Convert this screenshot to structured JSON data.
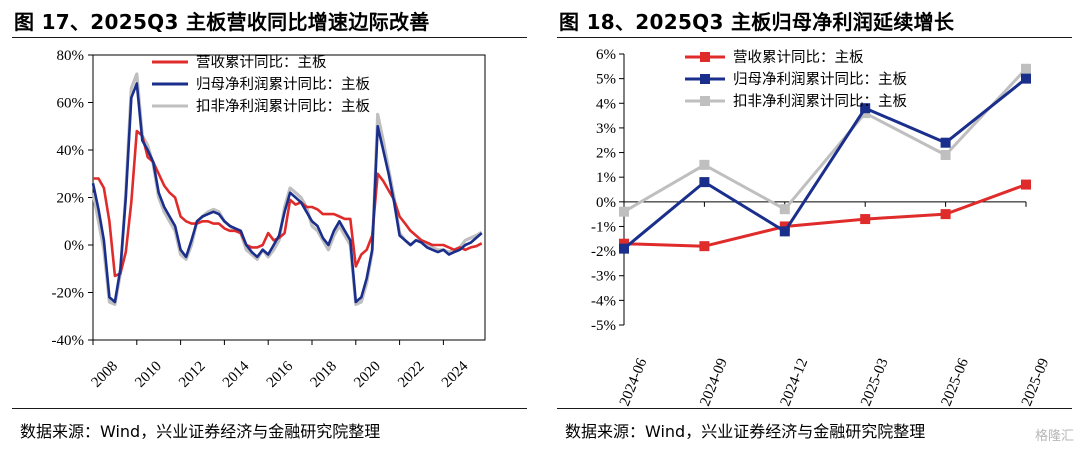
{
  "watermark": "格隆汇",
  "colors": {
    "revenue": "#e02b2b",
    "profit": "#1a2e8c",
    "deducted": "#bfbfbf"
  },
  "left": {
    "title": "图 17、2025Q3 主板营收同比增速边际改善",
    "source": "数据来源：Wind，兴业证券经济与金融研究院整理",
    "chart_data": {
      "type": "line",
      "title": "图 17、2025Q3 主板营收同比增速边际改善",
      "x_ticks": [
        "2008",
        "2010",
        "2012",
        "2014",
        "2016",
        "2018",
        "2020",
        "2022",
        "2024"
      ],
      "y_ticks": [
        "80%",
        "60%",
        "40%",
        "20%",
        "0%",
        "-20%",
        "-40%"
      ],
      "ylim": [
        -40,
        80
      ],
      "xlim": [
        2008.0,
        2025.9
      ],
      "grid": false,
      "legend_position": "top-right",
      "series": [
        {
          "name": "营收累计同比：主板",
          "color": "#e02b2b",
          "x": [
            2008.0,
            2008.25,
            2008.5,
            2008.75,
            2009.0,
            2009.25,
            2009.5,
            2009.75,
            2010.0,
            2010.25,
            2010.5,
            2010.75,
            2011.0,
            2011.25,
            2011.5,
            2011.75,
            2012.0,
            2012.25,
            2012.5,
            2012.75,
            2013.0,
            2013.25,
            2013.5,
            2013.75,
            2014.0,
            2014.25,
            2014.5,
            2014.75,
            2015.0,
            2015.25,
            2015.5,
            2015.75,
            2016.0,
            2016.25,
            2016.5,
            2016.75,
            2017.0,
            2017.25,
            2017.5,
            2017.75,
            2018.0,
            2018.25,
            2018.5,
            2018.75,
            2019.0,
            2019.25,
            2019.5,
            2019.75,
            2020.0,
            2020.25,
            2020.5,
            2020.75,
            2021.0,
            2021.25,
            2021.5,
            2021.75,
            2022.0,
            2022.25,
            2022.5,
            2022.75,
            2023.0,
            2023.25,
            2023.5,
            2023.75,
            2024.0,
            2024.25,
            2024.5,
            2024.75,
            2025.0,
            2025.25,
            2025.5,
            2025.75
          ],
          "y": [
            28,
            28,
            24,
            10,
            -13,
            -12,
            -3,
            18,
            48,
            46,
            37,
            35,
            30,
            25,
            22,
            20,
            12,
            10,
            9,
            9,
            10,
            10,
            9,
            9,
            7,
            6,
            6,
            5,
            0,
            -1,
            -1,
            0,
            5,
            2,
            3,
            5,
            19,
            17,
            18,
            16,
            16,
            15,
            13,
            13,
            13,
            12,
            11,
            11,
            -9,
            -4,
            -2,
            4,
            30,
            27,
            23,
            19,
            12,
            9,
            6,
            4,
            2,
            1,
            0,
            0,
            0,
            -1,
            -2,
            -1,
            -2,
            -1,
            -0.5,
            0.7
          ]
        },
        {
          "name": "归母净利润累计同比：主板",
          "color": "#1a2e8c",
          "x": [
            2008.0,
            2008.25,
            2008.5,
            2008.75,
            2009.0,
            2009.25,
            2009.5,
            2009.75,
            2010.0,
            2010.25,
            2010.5,
            2010.75,
            2011.0,
            2011.25,
            2011.5,
            2011.75,
            2012.0,
            2012.25,
            2012.5,
            2012.75,
            2013.0,
            2013.25,
            2013.5,
            2013.75,
            2014.0,
            2014.25,
            2014.5,
            2014.75,
            2015.0,
            2015.25,
            2015.5,
            2015.75,
            2016.0,
            2016.25,
            2016.5,
            2016.75,
            2017.0,
            2017.25,
            2017.5,
            2017.75,
            2018.0,
            2018.25,
            2018.5,
            2018.75,
            2019.0,
            2019.25,
            2019.5,
            2019.75,
            2020.0,
            2020.25,
            2020.5,
            2020.75,
            2021.0,
            2021.25,
            2021.5,
            2021.75,
            2022.0,
            2022.25,
            2022.5,
            2022.75,
            2023.0,
            2023.25,
            2023.5,
            2023.75,
            2024.0,
            2024.25,
            2024.5,
            2024.75,
            2025.0,
            2025.25,
            2025.5,
            2025.75
          ],
          "y": [
            26,
            15,
            2,
            -22,
            -24,
            -10,
            20,
            62,
            68,
            44,
            40,
            35,
            22,
            16,
            12,
            8,
            -2,
            -5,
            2,
            10,
            12,
            13,
            14,
            13,
            10,
            8,
            7,
            6,
            0,
            -3,
            -5,
            -2,
            -4,
            0,
            4,
            14,
            22,
            20,
            18,
            14,
            10,
            8,
            3,
            0,
            6,
            10,
            6,
            2,
            -24,
            -22,
            -14,
            -2,
            50,
            40,
            30,
            18,
            4,
            2,
            0,
            2,
            1,
            -1,
            -2,
            -3,
            -2,
            -4,
            -3,
            -2,
            0,
            1,
            3,
            5
          ]
        },
        {
          "name": "扣非净利润累计同比：主板",
          "color": "#bfbfbf",
          "x": [
            2008.0,
            2008.25,
            2008.5,
            2008.75,
            2009.0,
            2009.25,
            2009.5,
            2009.75,
            2010.0,
            2010.25,
            2010.5,
            2010.75,
            2011.0,
            2011.25,
            2011.5,
            2011.75,
            2012.0,
            2012.25,
            2012.5,
            2012.75,
            2013.0,
            2013.25,
            2013.5,
            2013.75,
            2014.0,
            2014.25,
            2014.5,
            2014.75,
            2015.0,
            2015.25,
            2015.5,
            2015.75,
            2016.0,
            2016.25,
            2016.5,
            2016.75,
            2017.0,
            2017.25,
            2017.5,
            2017.75,
            2018.0,
            2018.25,
            2018.5,
            2018.75,
            2019.0,
            2019.25,
            2019.5,
            2019.75,
            2020.0,
            2020.25,
            2020.5,
            2020.75,
            2021.0,
            2021.25,
            2021.5,
            2021.75,
            2022.0,
            2022.25,
            2022.5,
            2022.75,
            2023.0,
            2023.25,
            2023.5,
            2023.75,
            2024.0,
            2024.25,
            2024.5,
            2024.75,
            2025.0,
            2025.25,
            2025.5,
            2025.75
          ],
          "y": [
            22,
            10,
            -2,
            -24,
            -25,
            -12,
            22,
            66,
            72,
            46,
            42,
            34,
            20,
            14,
            10,
            6,
            -4,
            -6,
            0,
            10,
            12,
            14,
            15,
            14,
            10,
            8,
            6,
            5,
            -2,
            -4,
            -6,
            -2,
            -5,
            -2,
            2,
            16,
            24,
            22,
            20,
            16,
            8,
            6,
            2,
            -2,
            4,
            8,
            4,
            0,
            -25,
            -24,
            -16,
            -3,
            55,
            44,
            32,
            20,
            5,
            2,
            0,
            2,
            2,
            0,
            -1,
            -2,
            -2,
            -3,
            -2,
            -1,
            2,
            3,
            4,
            5.4
          ]
        }
      ]
    }
  },
  "right": {
    "title": "图 18、2025Q3 主板归母净利润延续增长",
    "source": "数据来源：Wind，兴业证券经济与金融研究院整理",
    "chart_data": {
      "type": "line",
      "title": "图 18、2025Q3 主板归母净利润延续增长",
      "categories": [
        "2024-06",
        "2024-09",
        "2024-12",
        "2025-03",
        "2025-06",
        "2025-09"
      ],
      "y_ticks": [
        "6%",
        "5%",
        "4%",
        "3%",
        "2%",
        "1%",
        "0%",
        "-1%",
        "-2%",
        "-3%",
        "-4%",
        "-5%"
      ],
      "ylim": [
        -5,
        6
      ],
      "grid": false,
      "legend_position": "top-left",
      "markers": "square",
      "series": [
        {
          "name": "营收累计同比：主板",
          "color": "#e02b2b",
          "values": [
            -1.7,
            -1.8,
            -1.0,
            -0.7,
            -0.5,
            0.7
          ]
        },
        {
          "name": "归母净利润累计同比：主板",
          "color": "#1a2e8c",
          "values": [
            -1.9,
            0.8,
            -1.2,
            3.8,
            2.4,
            5.0
          ]
        },
        {
          "name": "扣非净利润累计同比：主板",
          "color": "#bfbfbf",
          "values": [
            -0.4,
            1.5,
            -0.3,
            3.6,
            1.9,
            5.4
          ]
        }
      ]
    }
  }
}
